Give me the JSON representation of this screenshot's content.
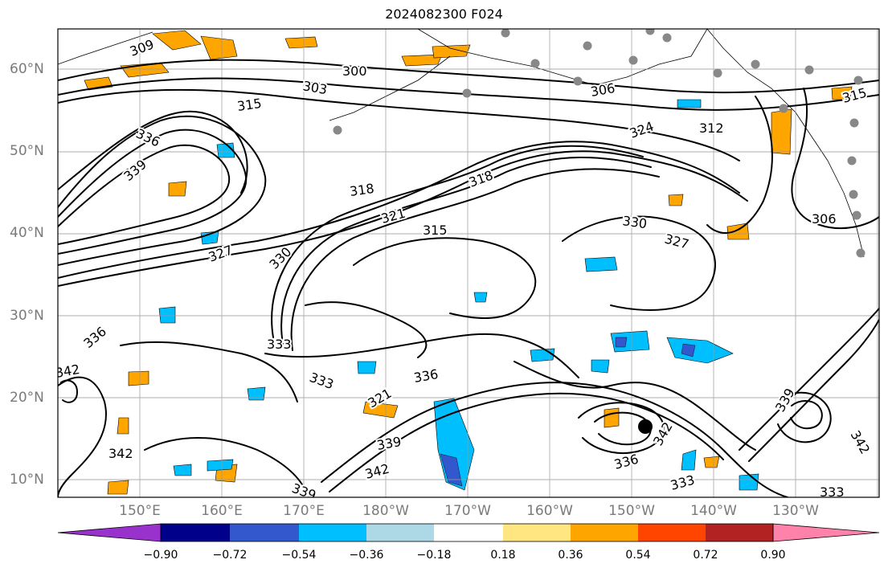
{
  "title": "2024082300 F024",
  "lat_labels": [
    "60°N",
    "50°N",
    "40°N",
    "30°N",
    "20°N",
    "10°N"
  ],
  "lon_labels": [
    "150°E",
    "160°E",
    "170°E",
    "180°W",
    "170°W",
    "160°W",
    "150°W",
    "140°W",
    "130°W"
  ],
  "colorbar": {
    "ticks": [
      "−0.90",
      "−0.72",
      "−0.54",
      "−0.36",
      "−0.18",
      "0.18",
      "0.36",
      "0.54",
      "0.72",
      "0.90"
    ],
    "colors": [
      "#9932cc",
      "#00008b",
      "#3357cc",
      "#00bfff",
      "#add8e6",
      "#ffffff",
      "#ffe680",
      "#ffa500",
      "#ff4500",
      "#b22222",
      "#ff82ab"
    ]
  },
  "contour_labels": [
    "300",
    "303",
    "306",
    "309",
    "312",
    "315",
    "318",
    "321",
    "324",
    "327",
    "330",
    "333",
    "336",
    "339",
    "342"
  ],
  "markers": {
    "cyclone_center_color": "#000000",
    "station_color": "#888888"
  }
}
